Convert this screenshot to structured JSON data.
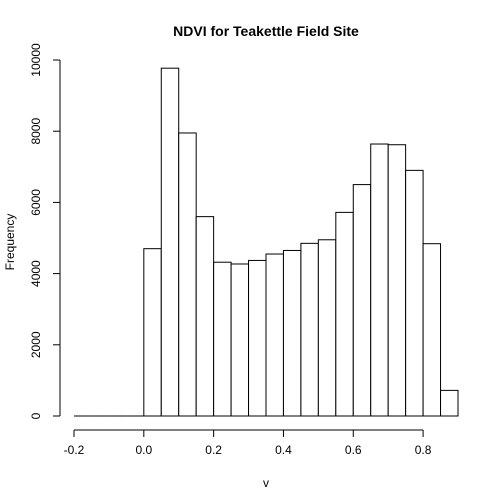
{
  "chart_data": {
    "type": "bar",
    "title": "NDVI for Teakettle Field Site",
    "xlabel": "v",
    "ylabel": "Frequency",
    "bin_width": 0.05,
    "bin_starts": [
      -0.2,
      -0.15,
      -0.1,
      -0.05,
      0.0,
      0.05,
      0.1,
      0.15,
      0.2,
      0.25,
      0.3,
      0.35,
      0.4,
      0.45,
      0.5,
      0.55,
      0.6,
      0.65,
      0.7,
      0.75,
      0.8,
      0.85
    ],
    "values": [
      0,
      0,
      0,
      0,
      4700,
      9770,
      7950,
      5600,
      4320,
      4270,
      4370,
      4550,
      4650,
      4850,
      4950,
      5720,
      6500,
      7640,
      7620,
      6900,
      4840,
      720
    ],
    "xlim": [
      -0.2,
      0.9
    ],
    "ylim": [
      0,
      10000
    ],
    "x_ticks": [
      "-0.2",
      "0.0",
      "0.2",
      "0.4",
      "0.6",
      "0.8"
    ],
    "y_ticks": [
      "0",
      "2000",
      "4000",
      "6000",
      "8000",
      "10000"
    ],
    "grid": false
  }
}
